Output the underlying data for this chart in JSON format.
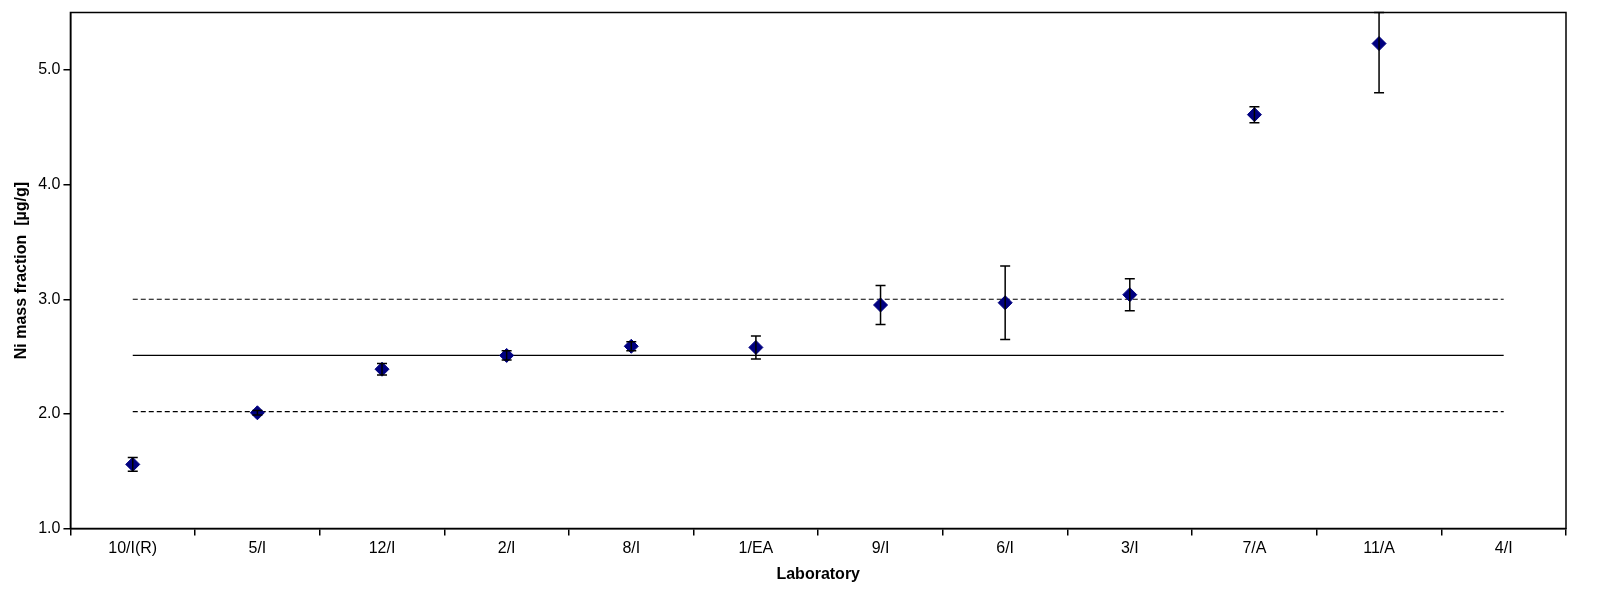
{
  "chart_data": {
    "type": "scatter",
    "xlabel": "Laboratory",
    "ylabel": "Ni mass fraction  [µg/g]",
    "categories": [
      "10/I(R)",
      "5/I",
      "12/I",
      "2/I",
      "8/I",
      "1/EA",
      "9/I",
      "6/I",
      "3/I",
      "7/A",
      "11/A",
      "4/I"
    ],
    "series": [
      {
        "color": "#000080",
        "values": [
          1.56,
          2.01,
          2.39,
          2.51,
          2.59,
          2.58,
          2.95,
          2.97,
          3.04,
          4.61,
          5.23,
          null
        ],
        "errors": [
          0.06,
          0.02,
          0.05,
          0.04,
          0.04,
          0.1,
          0.17,
          0.32,
          0.14,
          0.07,
          [
            4.8,
            5.5
          ],
          null
        ]
      }
    ],
    "ylim": [
      1.0,
      5.5
    ],
    "yticks": [
      {
        "value": 1,
        "label": "1.0"
      },
      {
        "value": 2,
        "label": "2.0"
      },
      {
        "value": 3,
        "label": "3.0"
      },
      {
        "value": 4,
        "label": "4.0"
      },
      {
        "value": 5,
        "label": "5.0"
      }
    ],
    "ref_lines": [
      {
        "axis": "y",
        "value": 3.0,
        "color": "#000000",
        "line_style": "dashed"
      },
      {
        "axis": "y",
        "value": 2.51,
        "color": "#000000",
        "line_style": "solid"
      },
      {
        "axis": "y",
        "value": 2.02,
        "color": "#000000",
        "line_style": "dashed"
      }
    ],
    "grid": false,
    "legend": false,
    "marker": "diamond"
  }
}
